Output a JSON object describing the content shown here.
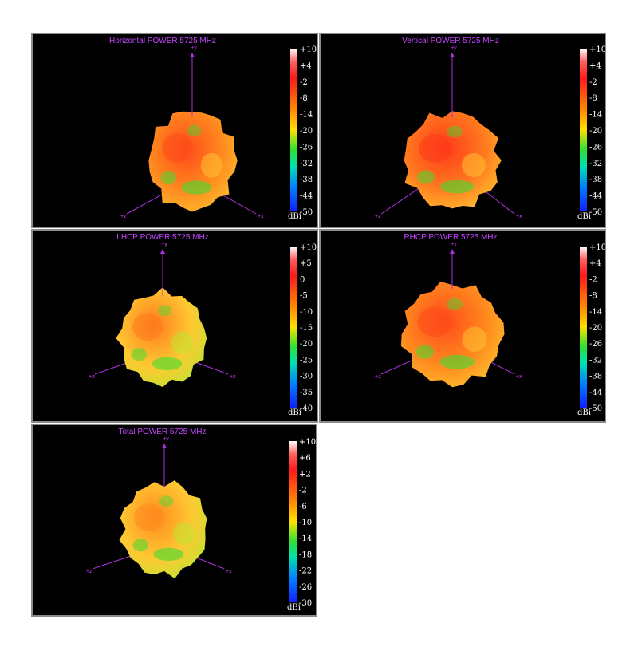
{
  "chart_data": [
    {
      "type": "heatmap",
      "title": "Horizontal POWER 5725  MHz",
      "colorbar": {
        "unit": "dBi",
        "ticks": [
          "+10",
          "+4",
          "-2",
          "-8",
          "-14",
          "-20",
          "-26",
          "-32",
          "-38",
          "-44",
          "-50"
        ],
        "range": [
          -50,
          10
        ]
      },
      "axes": [
        "+y",
        "+z",
        "+x"
      ],
      "dominant_colors": [
        "#ff4a1a",
        "#ff8a1e",
        "#ffc832",
        "#3fdc30"
      ]
    },
    {
      "type": "heatmap",
      "title": "Vertical POWER 5725  MHz",
      "colorbar": {
        "unit": "dBi",
        "ticks": [
          "+10",
          "+4",
          "-2",
          "-8",
          "-14",
          "-20",
          "-26",
          "-32",
          "-38",
          "-44",
          "-50"
        ],
        "range": [
          -50,
          10
        ]
      },
      "axes": [
        "+y",
        "+z",
        "+x"
      ],
      "dominant_colors": [
        "#ff3a1a",
        "#ff7a1e",
        "#ffc832",
        "#3fdc30"
      ]
    },
    {
      "type": "heatmap",
      "title": "LHCP POWER 5725  MHz",
      "colorbar": {
        "unit": "dBi",
        "ticks": [
          "+10",
          "+5",
          "0",
          "-5",
          "-10",
          "-15",
          "-20",
          "-25",
          "-30",
          "-35",
          "-40"
        ],
        "range": [
          -40,
          10
        ]
      },
      "axes": [
        "+y",
        "+z",
        "+x"
      ],
      "dominant_colors": [
        "#ff7a1e",
        "#ffc832",
        "#b8e830",
        "#3fdc30"
      ]
    },
    {
      "type": "heatmap",
      "title": "RHCP POWER 5725  MHz",
      "colorbar": {
        "unit": "dBi",
        "ticks": [
          "+10",
          "+4",
          "-2",
          "-8",
          "-14",
          "-20",
          "-26",
          "-32",
          "-38",
          "-44",
          "-50"
        ],
        "range": [
          -50,
          10
        ]
      },
      "axes": [
        "+y",
        "+z",
        "+x"
      ],
      "dominant_colors": [
        "#ff4a1a",
        "#ff8a1e",
        "#ffc832",
        "#3fdc30"
      ]
    },
    {
      "type": "heatmap",
      "title": "Total POWER 5725  MHz",
      "colorbar": {
        "unit": "dBi",
        "ticks": [
          "+10",
          "+6",
          "+2",
          "-2",
          "-6",
          "-10",
          "-14",
          "-18",
          "-22",
          "-26",
          "-30"
        ],
        "range": [
          -30,
          10
        ]
      },
      "axes": [
        "+y",
        "+z",
        "+x"
      ],
      "dominant_colors": [
        "#ff8a1e",
        "#ffc832",
        "#b8e830",
        "#3fdc30"
      ]
    }
  ]
}
